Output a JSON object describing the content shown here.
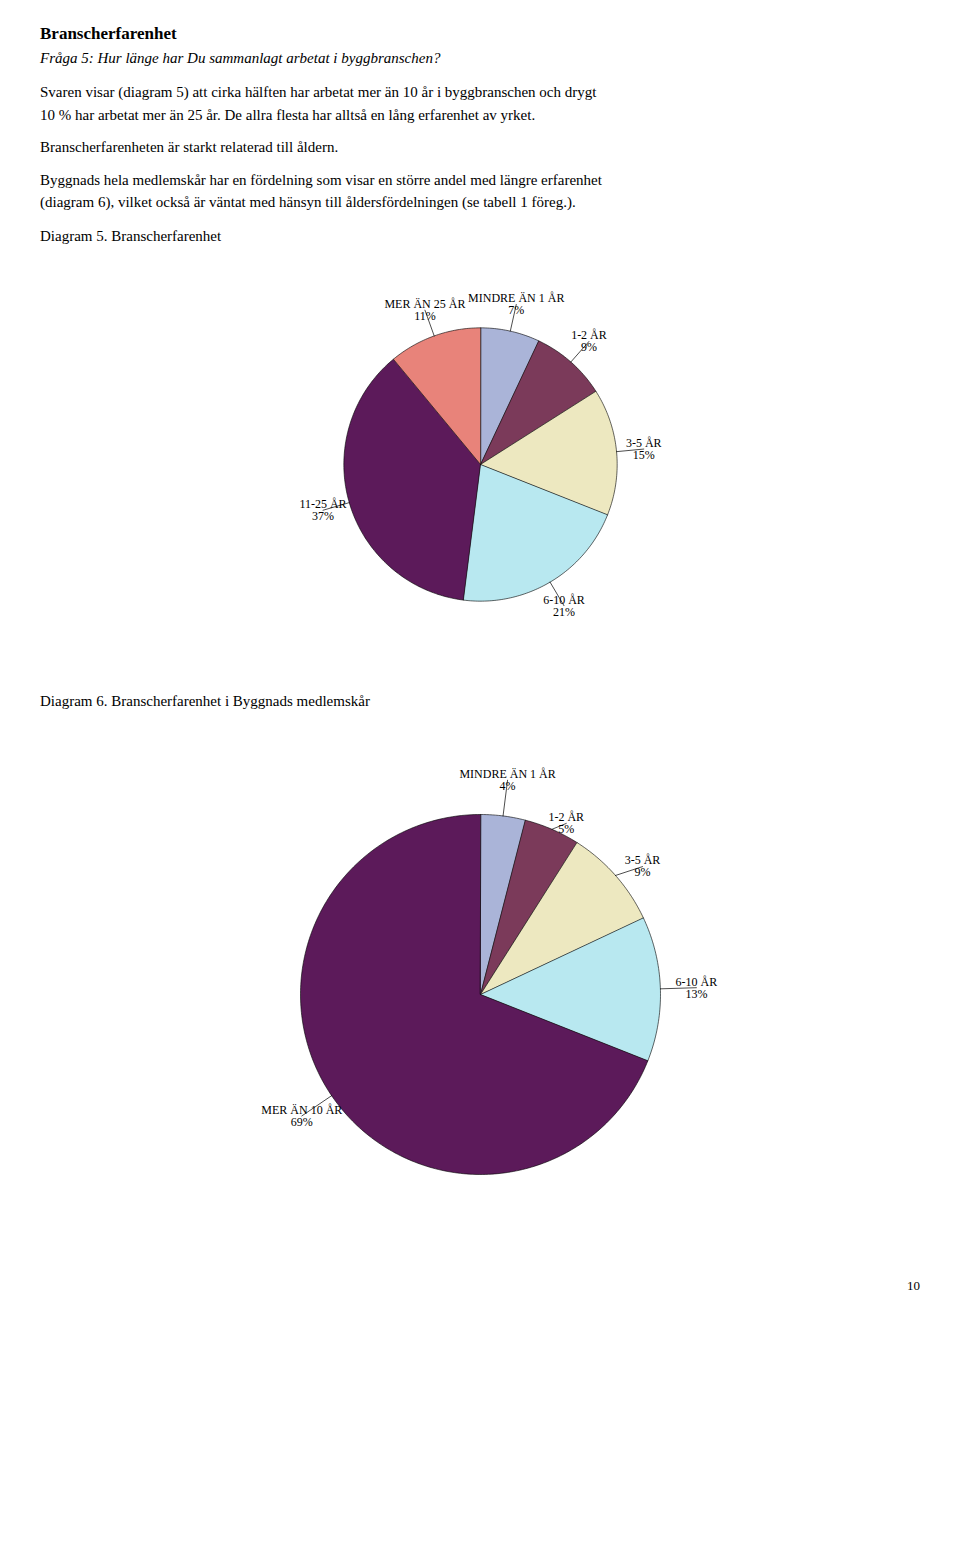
{
  "title": "Branscherfarenhet",
  "subtitle": "Fråga 5: Hur länge har Du sammanlagt arbetat i byggbranschen?",
  "annotations": [
    "Svaren visar (diagram 5) att cirka hälften har arbetat mer än 10 år i byggbranschen och drygt\n10 % har arbetat mer än 25 år. De allra flesta har alltså en lång erfarenhet av yrket.",
    "Branscherfarenheten är starkt relaterad till åldern.",
    "Byggnads hela medlemskår har en fördelning som visar en större andel med längre erfarenhet\n(diagram 6), vilket också är väntat med hänsyn till åldersfördelningen (se tabell 1 föreg.)."
  ],
  "caption": "10",
  "chart_data": [
    {
      "type": "pie",
      "title": "Diagram 5. Branscherfarenhet",
      "categories": [
        "MINDRE ÄN 1 ÅR",
        "1-2 ÅR",
        "3-5 ÅR",
        "6-10 ÅR",
        "11-25 ÅR",
        "MER ÄN 25 ÅR"
      ],
      "values": [
        7,
        9,
        15,
        21,
        37,
        11
      ],
      "value_labels": [
        "7%",
        "9%",
        "15%",
        "21%",
        "37%",
        "11%"
      ],
      "colors": [
        "#aab4d8",
        "#7b3a5a",
        "#ede8c0",
        "#b8e8f0",
        "#5c1a5a",
        "#e8837a"
      ],
      "data_labels": true
    },
    {
      "type": "pie",
      "title": "Diagram 6. Branscherfarenhet i Byggnads medlemskår",
      "categories": [
        "MINDRE ÄN 1 ÅR",
        "1-2 ÅR",
        "3-5 ÅR",
        "6-10 ÅR",
        "MER ÄN 10 ÅR"
      ],
      "values": [
        4,
        5,
        9,
        13,
        69
      ],
      "value_labels": [
        "4%",
        "5%",
        "9%",
        "13%",
        "69%"
      ],
      "colors": [
        "#aab4d8",
        "#7b3a5a",
        "#ede8c0",
        "#b8e8f0",
        "#5c1a5a"
      ],
      "data_labels": true
    }
  ]
}
